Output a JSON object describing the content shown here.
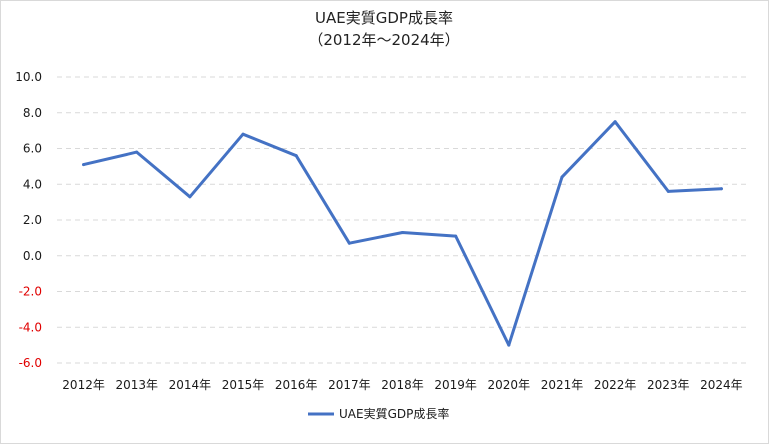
{
  "chart_data": {
    "type": "line",
    "title": "UAE実質GDP成長率",
    "subtitle": "（2012年～2024年）",
    "categories": [
      "2012年",
      "2013年",
      "2014年",
      "2015年",
      "2016年",
      "2017年",
      "2018年",
      "2019年",
      "2020年",
      "2021年",
      "2022年",
      "2023年",
      "2024年"
    ],
    "series": [
      {
        "name": "UAE実質GDP成長率",
        "values": [
          5.1,
          5.8,
          3.3,
          6.8,
          5.6,
          0.7,
          1.3,
          1.1,
          -5.0,
          4.4,
          7.5,
          3.6,
          3.75
        ]
      }
    ],
    "yticks": [
      "10.0",
      "8.0",
      "6.0",
      "4.0",
      "2.0",
      "0.0",
      "-2.0",
      "-4.0",
      "-6.0"
    ],
    "ylim": [
      -6,
      10
    ],
    "grid": true,
    "legend": "bottom",
    "xlabel": "",
    "ylabel": ""
  },
  "colors": {
    "series": "#4472c4",
    "grid": "#d9d9d9",
    "negative_tick": "#e00000"
  }
}
